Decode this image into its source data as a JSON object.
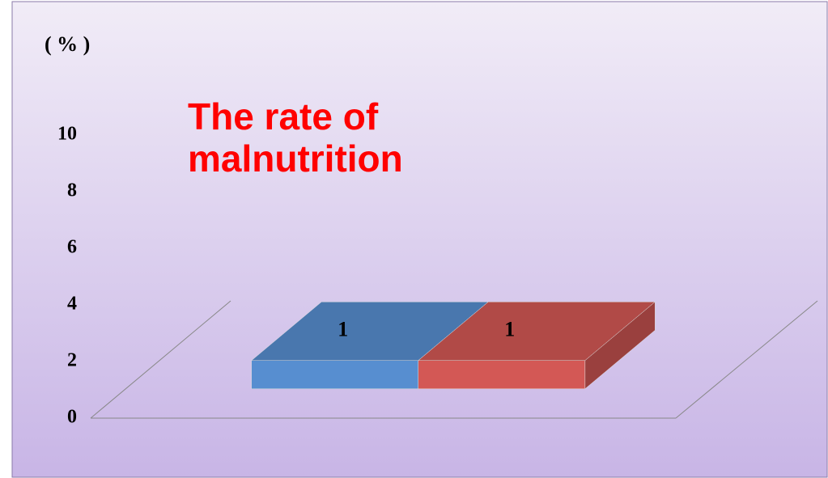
{
  "chart_data": {
    "type": "bar",
    "title": "The rate of malnutrition",
    "ylabel": "( % )",
    "categories": [
      null,
      null
    ],
    "values": [
      1,
      1
    ],
    "colors": [
      "#4f81bd",
      "#c0504d"
    ],
    "ylim": [
      0,
      10
    ],
    "yticks": [
      0,
      2,
      4,
      6,
      8,
      10
    ]
  }
}
